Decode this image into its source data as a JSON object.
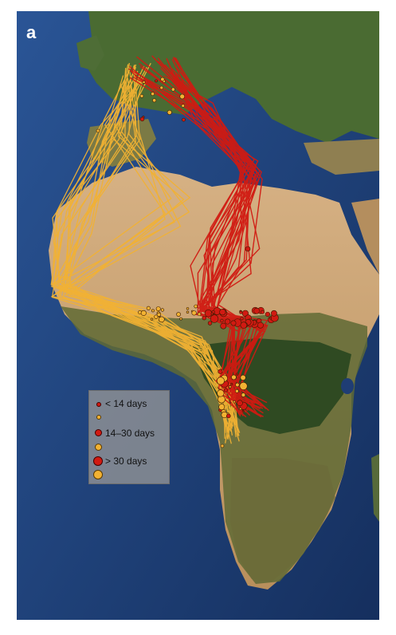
{
  "figure": {
    "panel_label": "a"
  },
  "legend": {
    "items": [
      {
        "label": "< 14 days",
        "color": "#d11a12",
        "size": "small"
      },
      {
        "label": "",
        "color": "#f2b233",
        "size": "small"
      },
      {
        "label": "14–30 days",
        "color": "#d11a12",
        "size": "medium"
      },
      {
        "label": "",
        "color": "#f2b233",
        "size": "medium"
      },
      {
        "label": "> 30 days",
        "color": "#d11a12",
        "size": "large"
      },
      {
        "label": "",
        "color": "#f2b233",
        "size": "large"
      }
    ]
  },
  "colors": {
    "ocean": "#1d3f78",
    "desert": "#c9a270",
    "vegetation": "#3f5a2a",
    "east_route": "#d11a12",
    "west_route": "#f2b233"
  }
}
